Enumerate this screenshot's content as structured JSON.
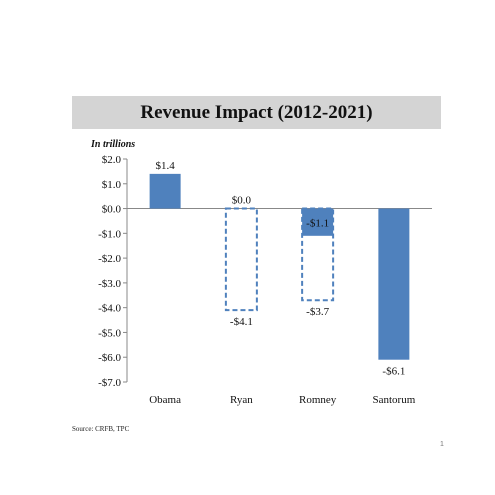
{
  "chart_data": {
    "type": "bar",
    "title": "Revenue Impact (2012-2021)",
    "units_label": "In trillions",
    "categories": [
      "Obama",
      "Ryan",
      "Romney",
      "Santorum"
    ],
    "values": [
      1.4,
      0.0,
      -1.1,
      -6.1
    ],
    "dashed_values": [
      null,
      -4.1,
      -3.7,
      null
    ],
    "data_labels": [
      "$1.4",
      "$0.0",
      "-$1.1",
      "-$6.1"
    ],
    "dashed_labels": [
      null,
      "-$4.1",
      "-$3.7",
      null
    ],
    "ylim": [
      -7.0,
      2.0
    ],
    "yticks": [
      2.0,
      1.0,
      0.0,
      -1.0,
      -2.0,
      -3.0,
      -4.0,
      -5.0,
      -6.0,
      -7.0
    ],
    "ytick_labels": [
      "$2.0",
      "$1.0",
      "$0.0",
      "-$1.0",
      "-$2.0",
      "-$3.0",
      "-$4.0",
      "-$5.0",
      "-$6.0",
      "-$7.0"
    ],
    "xlabel": "",
    "ylabel": "",
    "grid": false,
    "bar_color": "#4f81bd",
    "dashed_color": "#4f81bd"
  },
  "source": "Source: CRFB, TPC",
  "page_number": "1"
}
